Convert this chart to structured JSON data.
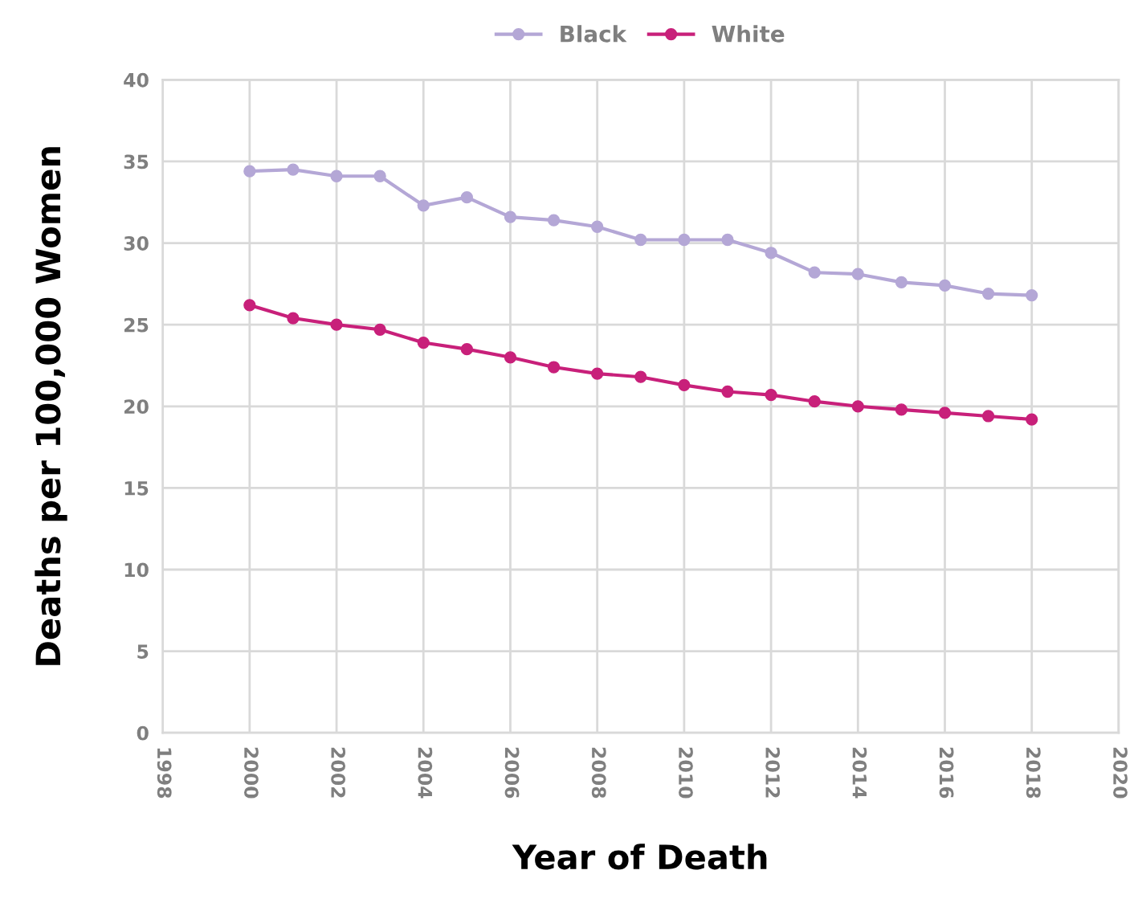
{
  "chart_data": {
    "type": "line",
    "xlabel": "Year of Death",
    "ylabel": "Deaths per 100,000 Women",
    "x": [
      2000,
      2001,
      2002,
      2003,
      2004,
      2005,
      2006,
      2007,
      2008,
      2009,
      2010,
      2011,
      2012,
      2013,
      2014,
      2015,
      2016,
      2017,
      2018
    ],
    "series": [
      {
        "name": "Black",
        "color": "#b4a7d6",
        "values": [
          34.4,
          34.5,
          34.1,
          34.1,
          32.3,
          32.8,
          31.6,
          31.4,
          31.0,
          30.2,
          30.2,
          30.2,
          29.4,
          28.2,
          28.1,
          27.6,
          27.4,
          26.9,
          26.8
        ]
      },
      {
        "name": "White",
        "color": "#c8207a",
        "values": [
          26.2,
          25.4,
          25.0,
          24.7,
          23.9,
          23.5,
          23.0,
          22.4,
          22.0,
          21.8,
          21.3,
          20.9,
          20.7,
          20.3,
          20.0,
          19.8,
          19.6,
          19.4,
          19.2
        ]
      }
    ],
    "xlim": [
      1998,
      2020
    ],
    "xticks": [
      1998,
      2000,
      2002,
      2004,
      2006,
      2008,
      2010,
      2012,
      2014,
      2016,
      2018,
      2020
    ],
    "ylim": [
      0,
      40
    ],
    "yticks": [
      0,
      5,
      10,
      15,
      20,
      25,
      30,
      35,
      40
    ],
    "grid": true,
    "legend": "top",
    "marker": "circle",
    "line_style": "solid"
  }
}
